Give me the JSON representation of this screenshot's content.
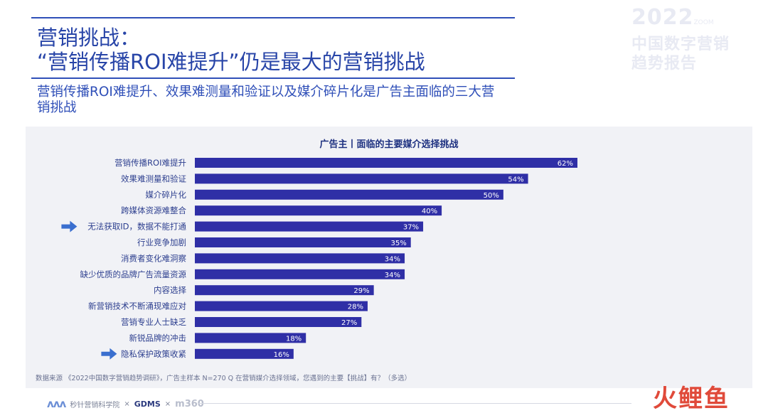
{
  "header": {
    "title_line1": "营销挑战：",
    "title_line2": "“营销传播ROI难提升”仍是最大的营销挑战",
    "subtitle": "营销传播ROI难提升、效果难测量和验证以及媒介碎片化是广告主面临的三大营销挑战"
  },
  "brand": {
    "year": "2022",
    "year_suffix": "ZOOM",
    "line1": "中国数字营销",
    "line2": "趋势报告"
  },
  "chart_data": {
    "type": "bar",
    "orientation": "horizontal",
    "title": "广告主丨面临的主要媒介选择挑战",
    "categories": [
      "营销传播ROI难提升",
      "效果难测量和验证",
      "媒介碎片化",
      "跨媒体资源难整合",
      "无法获取ID，数据不能打通",
      "行业竞争加剧",
      "消费者变化难洞察",
      "缺少优质的品牌广告流量资源",
      "内容选择",
      "新营销技术不断涌现难应对",
      "营销专业人士缺乏",
      "新锐品牌的冲击",
      "隐私保护政策收紧"
    ],
    "values": [
      62,
      54,
      50,
      40,
      37,
      35,
      34,
      34,
      29,
      28,
      27,
      18,
      16
    ],
    "value_labels": [
      "62%",
      "54%",
      "50%",
      "40%",
      "37%",
      "35%",
      "34%",
      "34%",
      "29%",
      "28%",
      "27%",
      "18%",
      "16%"
    ],
    "highlighted": [
      "无法获取ID，数据不能打通",
      "隐私保护政策收紧"
    ],
    "xlim": [
      0,
      62
    ],
    "grid": false,
    "legend": "none",
    "bar_color": "#2f2fa6",
    "arrow_color": "#3a6fcf"
  },
  "source_note": "数据来源 《2022中国数字营销趋势调研》，广告主样本 N=270   Q 在营销媒介选择领域，您遇到的主要【挑战】有？（多选）",
  "footer": {
    "logo1": "秒针营销科学院",
    "sep": "×",
    "logo2": "GDMS",
    "logo3": "m360"
  },
  "watermark": "火鲤鱼"
}
